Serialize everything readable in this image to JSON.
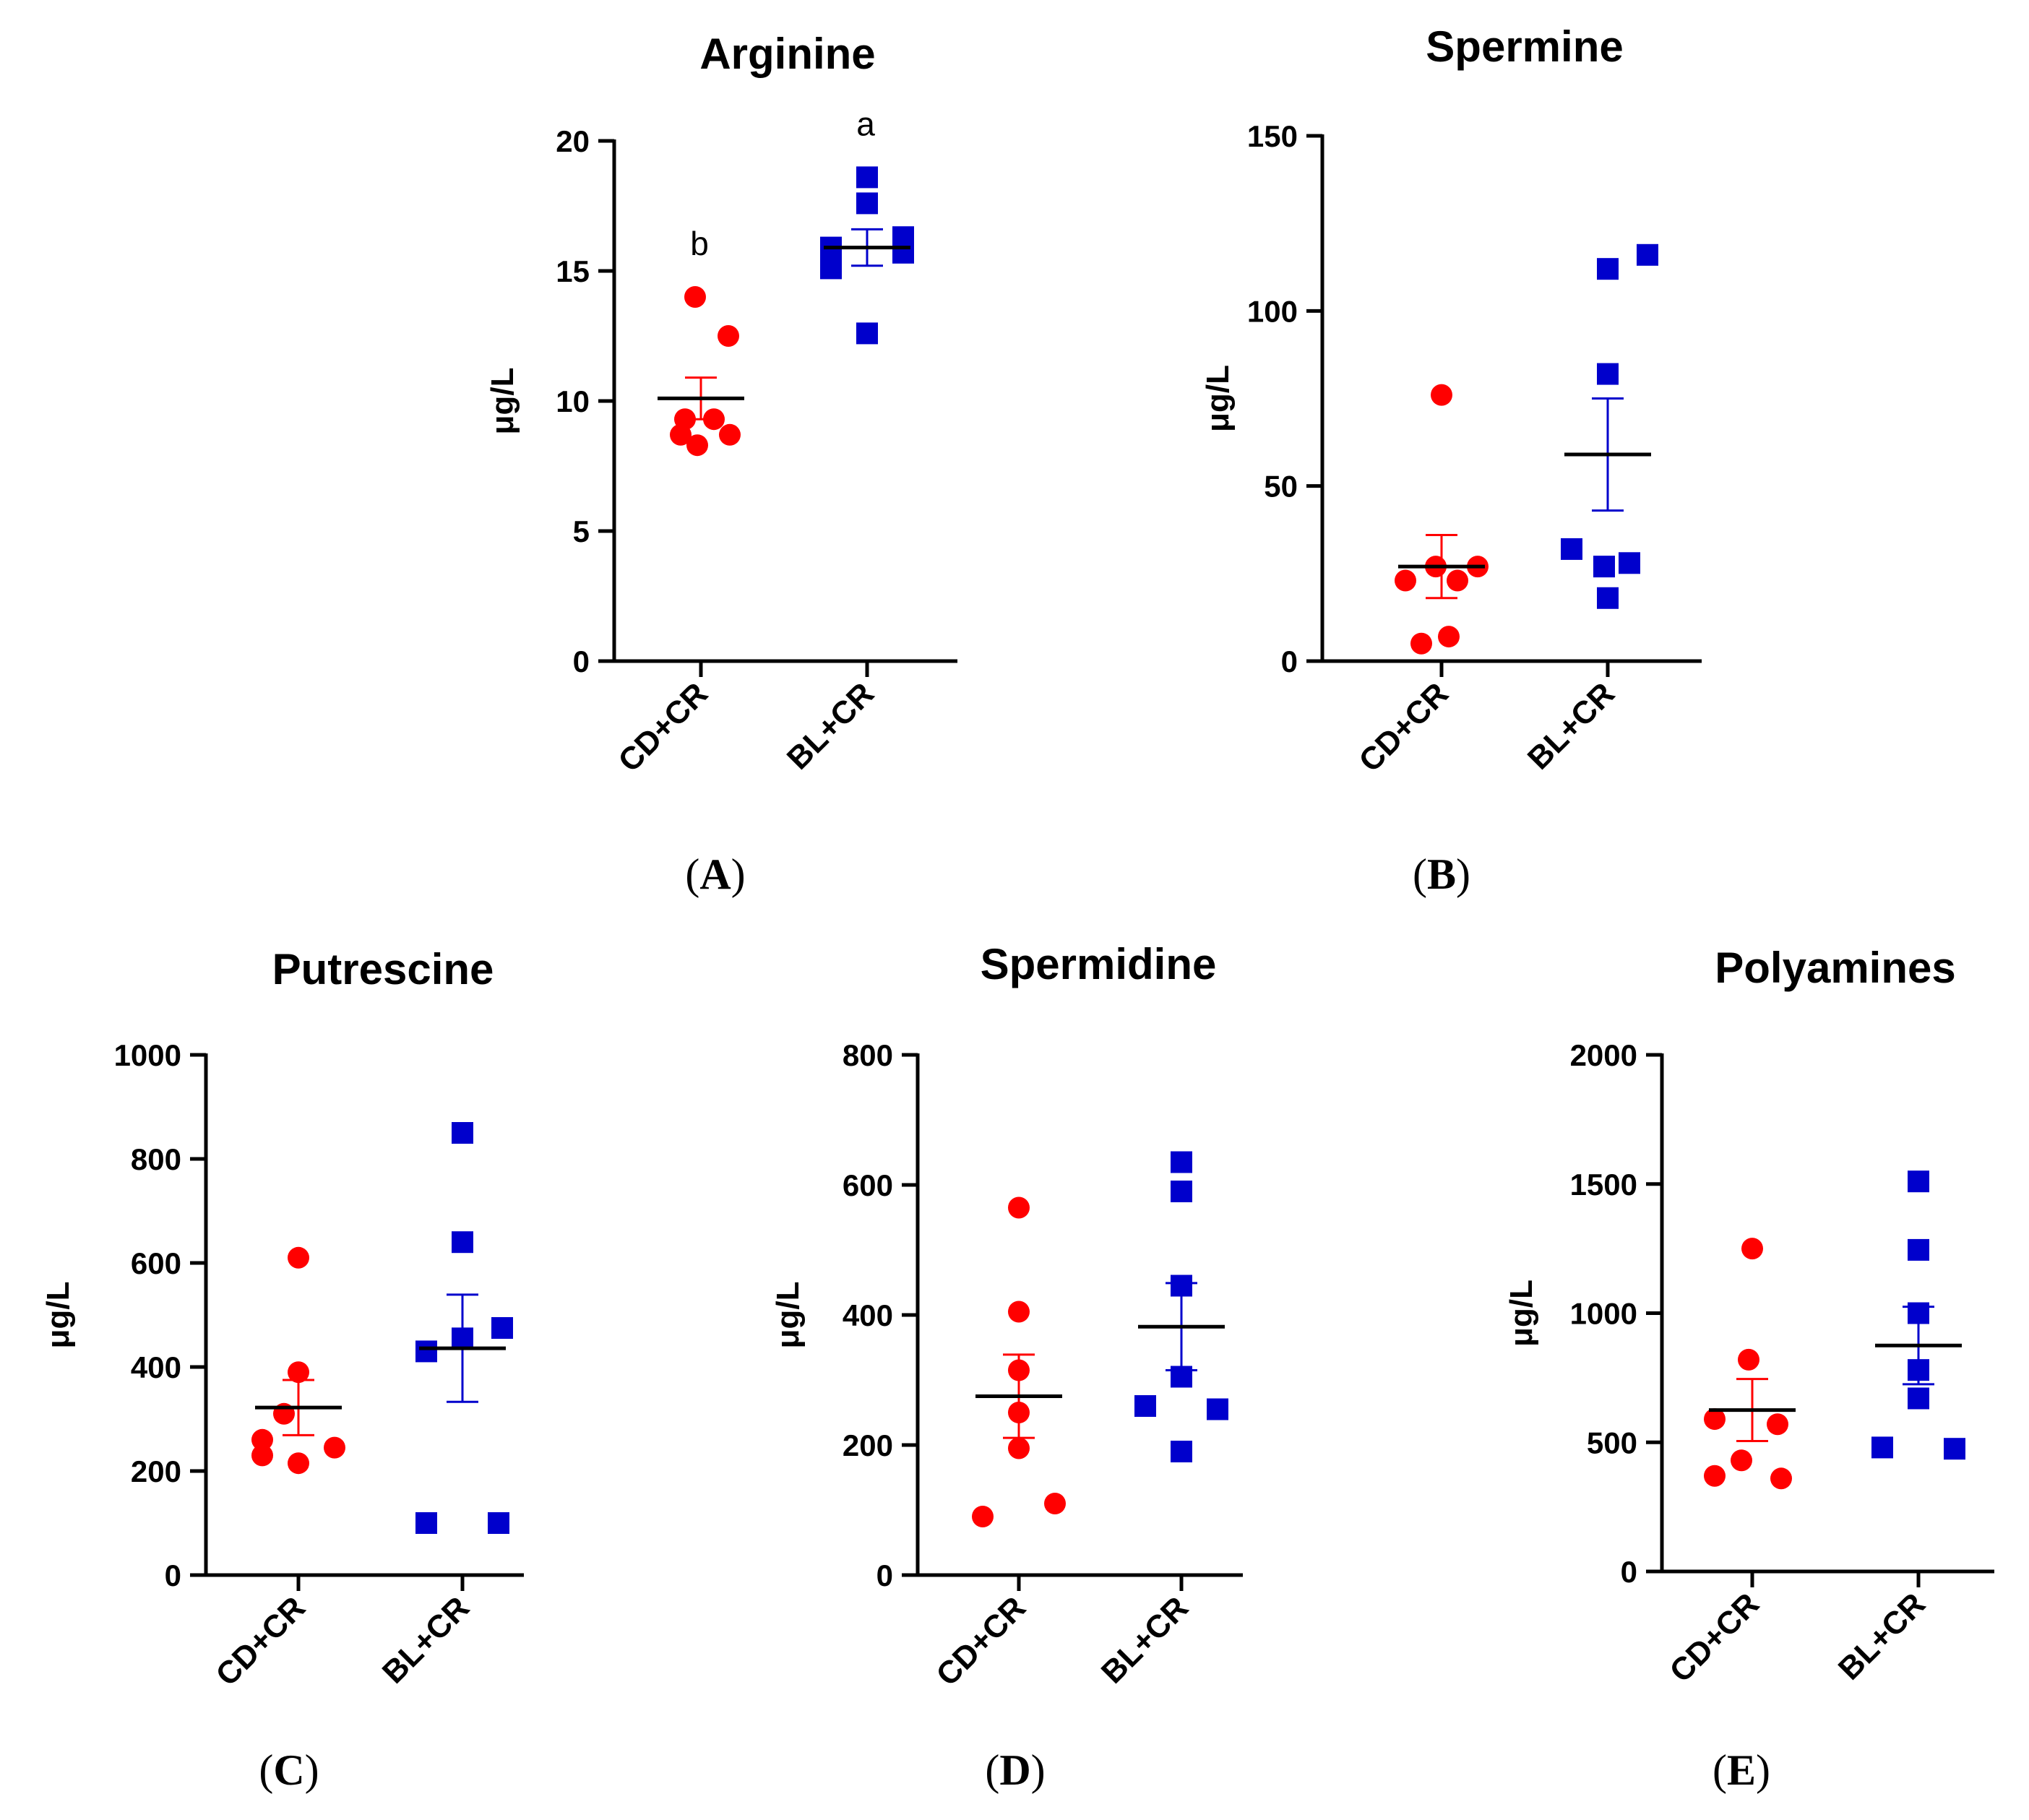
{
  "chart_data": [
    {
      "id": "A",
      "type": "scatter",
      "title": "Arginine",
      "panel_label": "A",
      "ylabel": "μg/L",
      "ylim": [
        0,
        20
      ],
      "yticks": [
        0,
        5,
        10,
        15,
        20
      ],
      "categories": [
        "CD+CR",
        "BL+CR"
      ],
      "series": [
        {
          "name": "CD+CR",
          "marker": "circle",
          "color": "#ff0000",
          "points": [
            14.0,
            12.5,
            9.3,
            9.3,
            8.7,
            8.7,
            8.3
          ],
          "mean": 10.1,
          "sem": 0.8,
          "letter": "b"
        },
        {
          "name": "BL+CR",
          "marker": "square",
          "color": "#0000cc",
          "points": [
            18.6,
            17.6,
            16.3,
            15.9,
            15.7,
            15.1,
            12.6
          ],
          "mean": 15.9,
          "sem": 0.7,
          "letter": "a"
        }
      ]
    },
    {
      "id": "B",
      "type": "scatter",
      "title": "Spermine",
      "panel_label": "B",
      "ylabel": "μg/L",
      "ylim": [
        0,
        150
      ],
      "yticks": [
        0,
        50,
        100,
        150
      ],
      "categories": [
        "CD+CR",
        "BL+CR"
      ],
      "series": [
        {
          "name": "CD+CR",
          "marker": "circle",
          "color": "#ff0000",
          "points": [
            76,
            27,
            27,
            23,
            23,
            7,
            5
          ],
          "mean": 27,
          "sem": 9
        },
        {
          "name": "BL+CR",
          "marker": "square",
          "color": "#0000cc",
          "points": [
            116,
            112,
            82,
            32,
            28,
            27,
            18
          ],
          "mean": 59,
          "sem": 16
        }
      ]
    },
    {
      "id": "C",
      "type": "scatter",
      "title": "Putrescine",
      "panel_label": "C",
      "ylabel": "μg/L",
      "ylim": [
        0,
        1000
      ],
      "yticks": [
        0,
        200,
        400,
        600,
        800,
        1000
      ],
      "categories": [
        "CD+CR",
        "BL+CR"
      ],
      "series": [
        {
          "name": "CD+CR",
          "marker": "circle",
          "color": "#ff0000",
          "points": [
            610,
            390,
            310,
            260,
            245,
            230,
            215
          ],
          "mean": 322,
          "sem": 53
        },
        {
          "name": "BL+CR",
          "marker": "square",
          "color": "#0000cc",
          "points": [
            850,
            640,
            475,
            455,
            430,
            100,
            100
          ],
          "mean": 436,
          "sem": 103
        }
      ]
    },
    {
      "id": "D",
      "type": "scatter",
      "title": "Spermidine",
      "panel_label": "D",
      "ylabel": "μg/L",
      "ylim": [
        0,
        800
      ],
      "yticks": [
        0,
        200,
        400,
        600,
        800
      ],
      "categories": [
        "CD+CR",
        "BL+CR"
      ],
      "series": [
        {
          "name": "CD+CR",
          "marker": "circle",
          "color": "#ff0000",
          "points": [
            565,
            405,
            315,
            250,
            195,
            110,
            90
          ],
          "mean": 275,
          "sem": 64
        },
        {
          "name": "BL+CR",
          "marker": "square",
          "color": "#0000cc",
          "points": [
            635,
            590,
            445,
            305,
            260,
            255,
            190
          ],
          "mean": 382,
          "sem": 67
        }
      ]
    },
    {
      "id": "E",
      "type": "scatter",
      "title": "Polyamines",
      "panel_label": "E",
      "ylabel": "μg/L",
      "ylim": [
        0,
        2000
      ],
      "yticks": [
        0,
        500,
        1000,
        1500,
        2000
      ],
      "categories": [
        "CD+CR",
        "BL+CR"
      ],
      "series": [
        {
          "name": "CD+CR",
          "marker": "circle",
          "color": "#ff0000",
          "points": [
            1250,
            820,
            590,
            570,
            430,
            370,
            360
          ],
          "mean": 625,
          "sem": 120
        },
        {
          "name": "BL+CR",
          "marker": "square",
          "color": "#0000cc",
          "points": [
            1510,
            1245,
            1000,
            780,
            670,
            480,
            475
          ],
          "mean": 875,
          "sem": 150
        }
      ]
    }
  ]
}
